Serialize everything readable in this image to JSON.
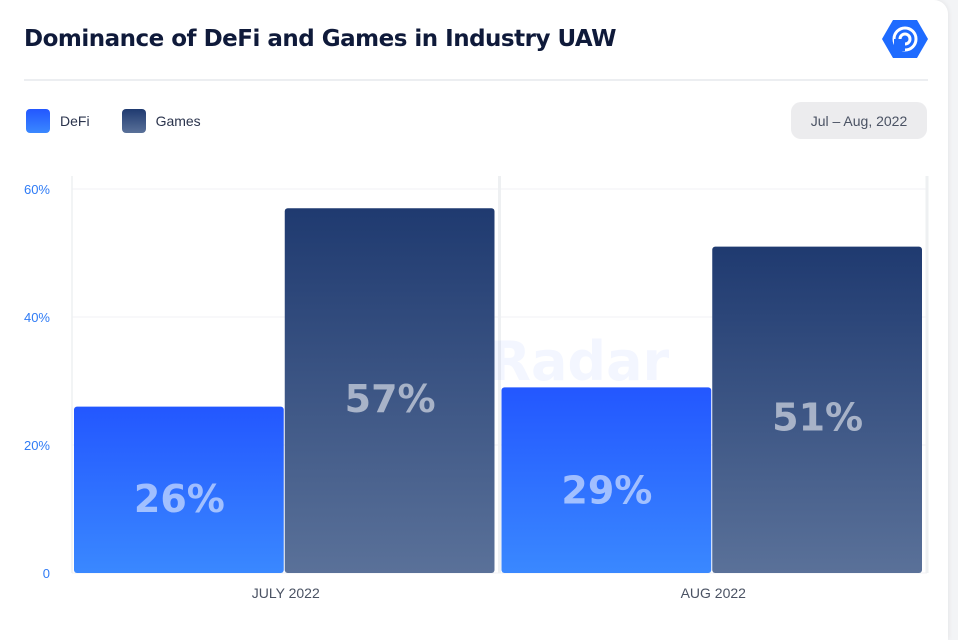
{
  "header": {
    "title": "Dominance of DeFi and Games in Industry UAW",
    "logo_icon": "dappradar-logo-icon"
  },
  "date_range": "Jul – Aug, 2022",
  "watermark": "DappRadar",
  "colors": {
    "defi_top": "#2357ff",
    "defi_bottom": "#3a88ff",
    "games_top": "#1f3a70",
    "games_bottom": "#5a7199",
    "axis_text": "#2f7bf5"
  },
  "chart_data": {
    "type": "bar",
    "title": "Dominance of DeFi and Games in Industry UAW",
    "categories": [
      "JULY 2022",
      "AUG 2022"
    ],
    "series": [
      {
        "name": "DeFi",
        "values": [
          26,
          29
        ],
        "labels": [
          "26%",
          "29%"
        ]
      },
      {
        "name": "Games",
        "values": [
          57,
          51
        ],
        "labels": [
          "57%",
          "51%"
        ]
      }
    ],
    "ylim": [
      0,
      60
    ],
    "yticks": [
      {
        "value": 0,
        "label": "0"
      },
      {
        "value": 20,
        "label": "20%"
      },
      {
        "value": 40,
        "label": "40%"
      },
      {
        "value": 60,
        "label": "60%"
      }
    ],
    "grid": true,
    "legend": "top-left"
  }
}
